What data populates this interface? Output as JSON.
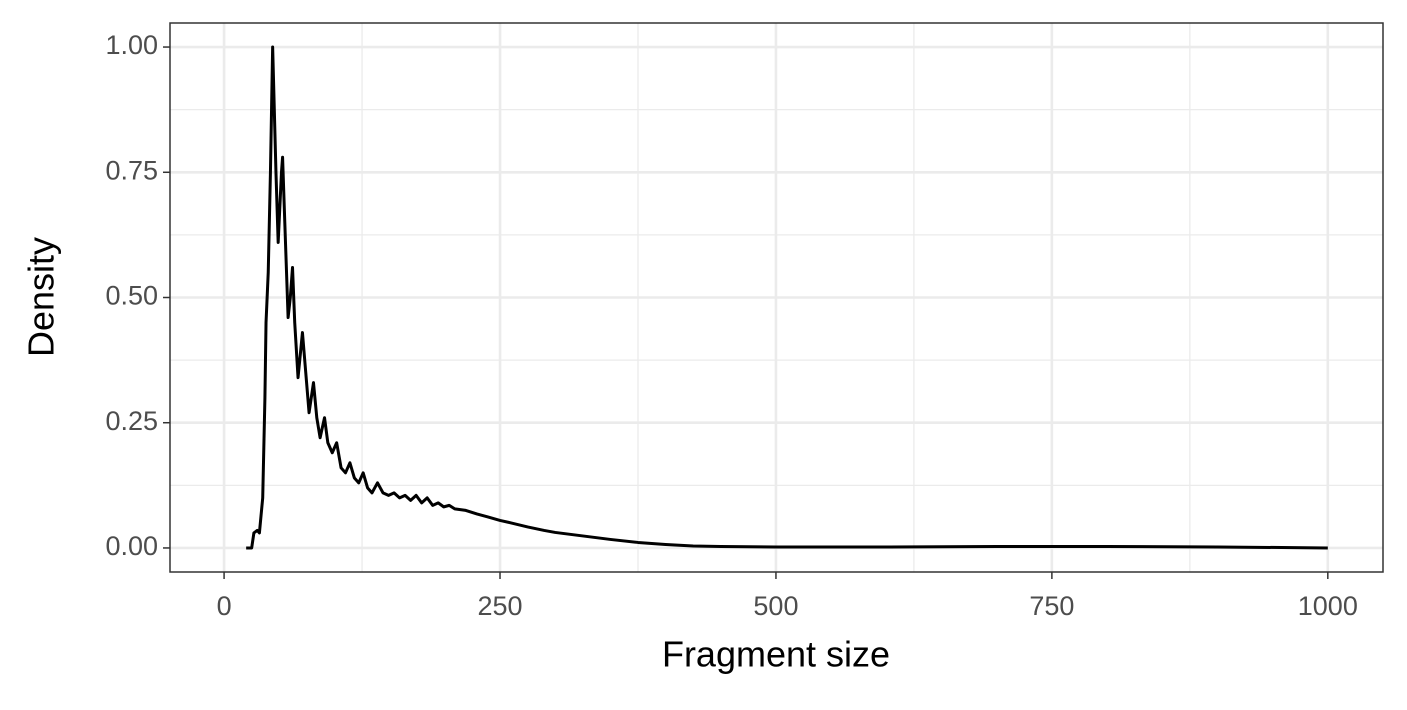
{
  "chart_data": {
    "type": "line",
    "x_label": "Fragment size",
    "y_label": "Density",
    "xlim": [
      -49,
      1050
    ],
    "ylim": [
      -0.048,
      1.048
    ],
    "xticks": [
      0,
      250,
      500,
      750,
      1000
    ],
    "yticks": [
      {
        "value": 0,
        "label": "0.00"
      },
      {
        "value": 0.25,
        "label": "0.25"
      },
      {
        "value": 0.5,
        "label": "0.50"
      },
      {
        "value": 0.75,
        "label": "0.75"
      },
      {
        "value": 1,
        "label": "1.00"
      }
    ],
    "grid": true,
    "series": [
      {
        "color": "#000000",
        "x": [
          20,
          25,
          27,
          30,
          32,
          35,
          37,
          38,
          40,
          42,
          44,
          47,
          49,
          52,
          53,
          55,
          58,
          60,
          62,
          64,
          67,
          71,
          74,
          77,
          81,
          84,
          87,
          91,
          94,
          98,
          102,
          106,
          110,
          114,
          118,
          122,
          126,
          130,
          134,
          139,
          144,
          149,
          154,
          159,
          164,
          169,
          174,
          179,
          184,
          189,
          194,
          199,
          204,
          209,
          219,
          229,
          239,
          250,
          260,
          275,
          290,
          300,
          325,
          350,
          375,
          400,
          425,
          450,
          500,
          600,
          700,
          800,
          900,
          1000
        ],
        "values": [
          0,
          0,
          0.03,
          0.035,
          0.03,
          0.1,
          0.3,
          0.45,
          0.55,
          0.75,
          1.0,
          0.75,
          0.61,
          0.75,
          0.78,
          0.65,
          0.46,
          0.5,
          0.56,
          0.45,
          0.34,
          0.43,
          0.35,
          0.27,
          0.33,
          0.26,
          0.22,
          0.26,
          0.21,
          0.19,
          0.21,
          0.16,
          0.15,
          0.17,
          0.14,
          0.13,
          0.15,
          0.12,
          0.11,
          0.13,
          0.11,
          0.105,
          0.11,
          0.1,
          0.105,
          0.095,
          0.105,
          0.09,
          0.1,
          0.085,
          0.09,
          0.082,
          0.085,
          0.078,
          0.075,
          0.068,
          0.062,
          0.055,
          0.05,
          0.042,
          0.035,
          0.031,
          0.024,
          0.017,
          0.011,
          0.007,
          0.004,
          0.003,
          0.002,
          0.002,
          0.003,
          0.003,
          0.002,
          0
        ]
      }
    ]
  }
}
